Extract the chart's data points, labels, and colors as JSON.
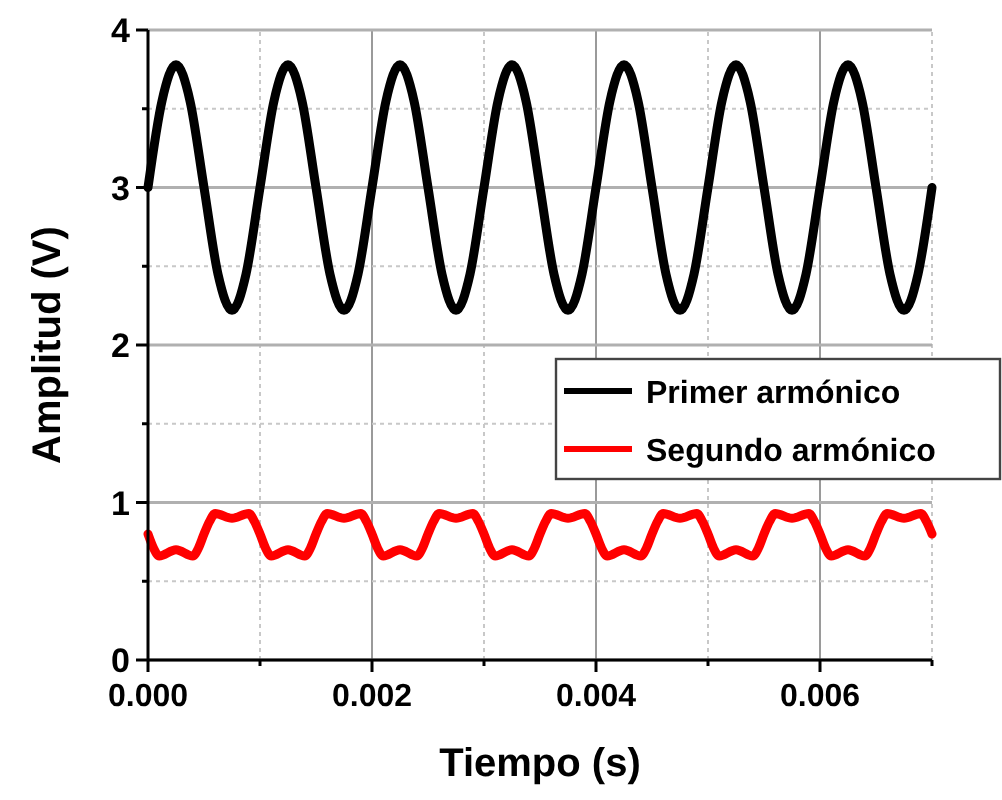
{
  "chart_data": {
    "type": "line",
    "xlabel": "Tiempo (s)",
    "ylabel": "Amplitud (V)",
    "xlim": [
      0,
      0.007
    ],
    "ylim": [
      0,
      4
    ],
    "xticks": [
      {
        "value": 0,
        "label": "0.000"
      },
      {
        "value": 0.001,
        "label": null
      },
      {
        "value": 0.002,
        "label": "0.002"
      },
      {
        "value": 0.003,
        "label": null
      },
      {
        "value": 0.004,
        "label": "0.004"
      },
      {
        "value": 0.005,
        "label": null
      },
      {
        "value": 0.006,
        "label": "0.006"
      },
      {
        "value": 0.007,
        "label": null
      }
    ],
    "yticks": [
      0,
      {
        "value": 0.5,
        "label": null
      },
      1,
      {
        "value": 1.5,
        "label": null
      },
      2,
      {
        "value": 2.5,
        "label": null
      },
      3,
      {
        "value": 3.5,
        "label": null
      },
      4
    ],
    "grid": true,
    "legend": "right",
    "line_style": "solid",
    "series": [
      {
        "name": "Primer armónico",
        "color": "#000000",
        "x": [
          0,
          0.000125,
          0.00025,
          0.000375,
          0.0005,
          0.000625,
          0.00075,
          0.000875,
          0.001,
          0.001125,
          0.00125,
          0.001375,
          0.0015,
          0.001625,
          0.00175,
          0.001875,
          0.002,
          0.002125,
          0.00225,
          0.002375,
          0.0025,
          0.002625,
          0.00275,
          0.002875,
          0.003,
          0.003125,
          0.00325,
          0.003375,
          0.0035,
          0.003625,
          0.00375,
          0.003875,
          0.004,
          0.004125,
          0.00425,
          0.004375,
          0.0045,
          0.004625,
          0.00475,
          0.004875,
          0.005,
          0.005125,
          0.00525,
          0.005375,
          0.0055,
          0.005625,
          0.00575,
          0.005875,
          0.006,
          0.006125,
          0.00625,
          0.006375,
          0.0065,
          0.006625,
          0.00675,
          0.006875,
          0.007
        ],
        "values": [
          3,
          3.55,
          3.78,
          3.55,
          3,
          2.45,
          2.22,
          2.45,
          3,
          3.55,
          3.78,
          3.55,
          3,
          2.45,
          2.22,
          2.45,
          3,
          3.55,
          3.78,
          3.55,
          3,
          2.45,
          2.22,
          2.45,
          3,
          3.55,
          3.78,
          3.55,
          3,
          2.45,
          2.22,
          2.45,
          3,
          3.55,
          3.78,
          3.55,
          3,
          2.45,
          2.22,
          2.45,
          3,
          3.55,
          3.78,
          3.55,
          3,
          2.45,
          2.22,
          2.45,
          3,
          3.55,
          3.78,
          3.55,
          3,
          2.45,
          2.22,
          2.45,
          3
        ]
      },
      {
        "name": "Segundo armónico",
        "color": "#ff0000",
        "x": [
          0,
          5e-05,
          0.0001,
          0.00025,
          0.0004,
          0.00045,
          0.0005,
          0.00055,
          0.0006,
          0.00075,
          0.0009,
          0.00095,
          0.001,
          0.00105,
          0.0011,
          0.00125,
          0.0014,
          0.00145,
          0.0015,
          0.00155,
          0.0016,
          0.00175,
          0.0019,
          0.00195,
          0.002,
          0.00205,
          0.0021,
          0.00225,
          0.0024,
          0.00245,
          0.0025,
          0.00255,
          0.0026,
          0.00275,
          0.0029,
          0.00295,
          0.003,
          0.00305,
          0.0031,
          0.00325,
          0.0034,
          0.00345,
          0.0035,
          0.00355,
          0.0036,
          0.00375,
          0.0039,
          0.00395,
          0.004,
          0.00405,
          0.0041,
          0.00425,
          0.0044,
          0.00445,
          0.0045,
          0.00455,
          0.0046,
          0.00475,
          0.0049,
          0.00495,
          0.005,
          0.00505,
          0.0051,
          0.00525,
          0.0054,
          0.00545,
          0.0055,
          0.00555,
          0.0056,
          0.00575,
          0.0059,
          0.00595,
          0.006,
          0.00605,
          0.0061,
          0.00625,
          0.0064,
          0.00645,
          0.0065,
          0.00655,
          0.0066,
          0.00675,
          0.0069,
          0.00695,
          0.007
        ],
        "values": [
          0.8,
          0.71,
          0.66,
          0.7,
          0.66,
          0.71,
          0.8,
          0.88,
          0.93,
          0.9,
          0.93,
          0.88,
          0.8,
          0.71,
          0.66,
          0.7,
          0.66,
          0.71,
          0.8,
          0.88,
          0.93,
          0.9,
          0.93,
          0.88,
          0.8,
          0.71,
          0.66,
          0.7,
          0.66,
          0.71,
          0.8,
          0.88,
          0.93,
          0.9,
          0.93,
          0.88,
          0.8,
          0.71,
          0.66,
          0.7,
          0.66,
          0.71,
          0.8,
          0.88,
          0.93,
          0.9,
          0.93,
          0.88,
          0.8,
          0.71,
          0.66,
          0.7,
          0.66,
          0.71,
          0.8,
          0.88,
          0.93,
          0.9,
          0.93,
          0.88,
          0.8,
          0.71,
          0.66,
          0.7,
          0.66,
          0.71,
          0.8,
          0.88,
          0.93,
          0.9,
          0.93,
          0.88,
          0.8,
          0.71,
          0.66,
          0.7,
          0.66,
          0.71,
          0.8,
          0.88,
          0.93,
          0.9,
          0.93,
          0.88,
          0.8
        ]
      }
    ]
  }
}
